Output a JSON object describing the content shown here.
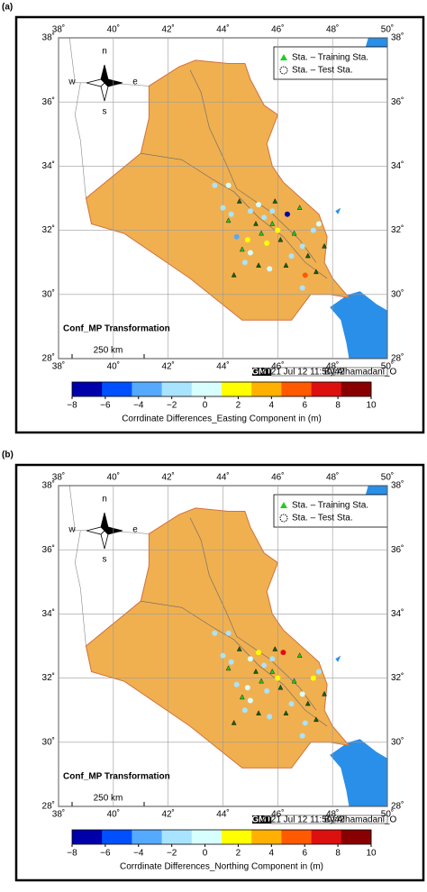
{
  "panels": [
    {
      "label": "(a)",
      "xticks": [
        {
          "value": 38,
          "label": "38˚"
        },
        {
          "value": 40,
          "label": "40˚"
        },
        {
          "value": 42,
          "label": "42˚"
        },
        {
          "value": 44,
          "label": "44˚"
        },
        {
          "value": 46,
          "label": "46˚"
        },
        {
          "value": 48,
          "label": "48˚"
        },
        {
          "value": 50,
          "label": "50˚"
        }
      ],
      "yticks": [
        {
          "value": 28,
          "label": "28˚"
        },
        {
          "value": 30,
          "label": "30˚"
        },
        {
          "value": 32,
          "label": "32˚"
        },
        {
          "value": 34,
          "label": "34˚"
        },
        {
          "value": 36,
          "label": "36˚"
        },
        {
          "value": 38,
          "label": "38˚"
        }
      ],
      "xlim": [
        38,
        50
      ],
      "ylim": [
        28,
        38
      ],
      "compass": {
        "n": "n",
        "w": "w",
        "e": "e",
        "s": "s"
      },
      "legend": [
        "Sta. – Training Sta.",
        "Sta. – Test Sta."
      ],
      "map_title": "Conf_MP Transformation",
      "scale_label": "250 km",
      "logo": "GMT",
      "timestamp": "2021 Jul 12 11:50:42",
      "author": "By:Alhamadani_O",
      "colorbar": {
        "range": [
          -8,
          10
        ],
        "colors": [
          "#0000aa",
          "#0050ff",
          "#55aaff",
          "#a8e4ff",
          "#d8ffff",
          "#ffff00",
          "#ffb000",
          "#ff5a00",
          "#dd1010",
          "#880000"
        ],
        "ticks": [
          {
            "value": -8,
            "label": "−8"
          },
          {
            "value": -6,
            "label": "−6"
          },
          {
            "value": -4,
            "label": "−4"
          },
          {
            "value": -2,
            "label": "−2"
          },
          0,
          2,
          4,
          6,
          8,
          10
        ],
        "title": "Corrdinate Differences_Easting Component in (m)"
      },
      "test_stations": {
        "lon": [
          44.0,
          44.3,
          45.0,
          45.3,
          45.5,
          45.8,
          46.35,
          46.0,
          45.6,
          45.0,
          44.5,
          44.8,
          46.5,
          46.9,
          47.0,
          46.9,
          47.3,
          47.5,
          43.7,
          44.2,
          44.9,
          45.7
        ],
        "lat": [
          32.7,
          32.5,
          32.6,
          32.8,
          32.4,
          32.6,
          32.5,
          32.0,
          31.6,
          31.3,
          31.8,
          31.0,
          31.2,
          31.5,
          30.6,
          30.2,
          32.0,
          32.2,
          33.4,
          33.4,
          31.7,
          30.8
        ],
        "values": [
          -1,
          -1.5,
          -1,
          0.5,
          -1,
          -2,
          -6.5,
          1.5,
          1.5,
          0,
          -3,
          -1,
          -1,
          -1,
          6,
          -1,
          -1,
          0,
          -1,
          0,
          1,
          -0.5
        ]
      },
      "training_stations": {
        "lon": [
          44.2,
          44.6,
          45.2,
          45.4,
          45.9,
          46.1,
          46.6,
          47.1,
          47.4,
          44.7,
          45.3,
          46.3,
          46.8,
          44.4,
          47.7,
          45.8
        ],
        "lat": [
          32.3,
          32.9,
          32.2,
          31.9,
          32.9,
          31.7,
          31.9,
          31.2,
          30.7,
          31.4,
          30.9,
          30.9,
          32.7,
          30.6,
          31.5,
          32.2
        ]
      }
    },
    {
      "label": "(b)",
      "xticks": [
        {
          "value": 38,
          "label": "38˚"
        },
        {
          "value": 40,
          "label": "40˚"
        },
        {
          "value": 42,
          "label": "42˚"
        },
        {
          "value": 44,
          "label": "44˚"
        },
        {
          "value": 46,
          "label": "46˚"
        },
        {
          "value": 48,
          "label": "48˚"
        },
        {
          "value": 50,
          "label": "50˚"
        }
      ],
      "yticks": [
        {
          "value": 28,
          "label": "28˚"
        },
        {
          "value": 30,
          "label": "30˚"
        },
        {
          "value": 32,
          "label": "32˚"
        },
        {
          "value": 34,
          "label": "34˚"
        },
        {
          "value": 36,
          "label": "36˚"
        },
        {
          "value": 38,
          "label": "38˚"
        }
      ],
      "xlim": [
        38,
        50
      ],
      "ylim": [
        28,
        38
      ],
      "compass": {
        "n": "n",
        "w": "w",
        "e": "e",
        "s": "s"
      },
      "legend": [
        "Sta. – Training Sta.",
        "Sta. – Test Sta."
      ],
      "map_title": "Conf_MP Transformation",
      "scale_label": "250 km",
      "logo": "GMT",
      "timestamp": "2021 Jul 12 11:50:42",
      "author": "By:Alhamadani_O",
      "colorbar": {
        "range": [
          -8,
          10
        ],
        "colors": [
          "#0000aa",
          "#0050ff",
          "#55aaff",
          "#a8e4ff",
          "#d8ffff",
          "#ffff00",
          "#ffb000",
          "#ff5a00",
          "#dd1010",
          "#880000"
        ],
        "ticks": [
          {
            "value": -8,
            "label": "−8"
          },
          {
            "value": -6,
            "label": "−6"
          },
          {
            "value": -4,
            "label": "−4"
          },
          {
            "value": -2,
            "label": "−2"
          },
          0,
          2,
          4,
          6,
          8,
          10
        ],
        "title": "Corrdinate Differences_Northing Component in (m)"
      },
      "test_stations": {
        "lon": [
          44.0,
          44.3,
          45.0,
          45.3,
          45.5,
          45.8,
          46.2,
          46.0,
          45.6,
          45.0,
          44.5,
          44.8,
          46.5,
          46.9,
          47.0,
          46.9,
          47.3,
          47.5,
          43.7,
          44.2,
          44.9,
          45.7
        ],
        "lat": [
          32.7,
          32.5,
          32.6,
          32.8,
          32.4,
          32.6,
          32.8,
          32.0,
          31.6,
          31.3,
          31.8,
          31.0,
          31.2,
          31.5,
          30.6,
          30.2,
          32.0,
          32.2,
          33.4,
          33.4,
          31.7,
          30.8
        ],
        "values": [
          -1,
          -1,
          -0.5,
          2,
          -1,
          -1,
          7,
          2,
          -1,
          0,
          -1,
          -1,
          -1,
          0,
          -1,
          -1,
          1.5,
          -1,
          -1,
          -1,
          0,
          -1
        ]
      },
      "training_stations": {
        "lon": [
          44.2,
          44.6,
          45.2,
          45.4,
          45.9,
          46.1,
          46.6,
          47.1,
          47.4,
          44.7,
          45.3,
          46.3,
          46.8,
          44.4,
          47.7,
          45.8
        ],
        "lat": [
          32.3,
          32.9,
          32.2,
          31.9,
          32.9,
          31.7,
          31.9,
          31.2,
          30.7,
          31.4,
          30.9,
          30.9,
          32.7,
          30.6,
          31.5,
          32.2
        ]
      }
    }
  ]
}
